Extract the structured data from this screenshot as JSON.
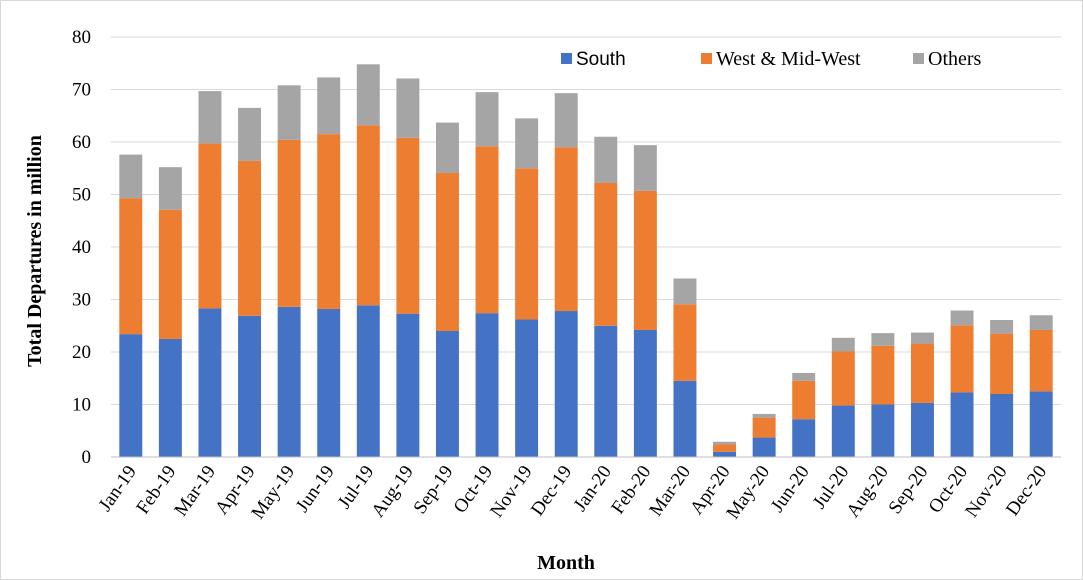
{
  "chart_data": {
    "type": "bar",
    "stacked": true,
    "title": "",
    "xlabel": "Month",
    "ylabel": "Total Departures in million",
    "ylim": [
      0,
      80
    ],
    "yticks": [
      0,
      10,
      20,
      30,
      40,
      50,
      60,
      70,
      80
    ],
    "grid": true,
    "legend_position": "top-right",
    "categories": [
      "Jan-19",
      "Feb-19",
      "Mar-19",
      "Apr-19",
      "May-19",
      "Jun-19",
      "Jul-19",
      "Aug-19",
      "Sep-19",
      "Oct-19",
      "Nov-19",
      "Dec-19",
      "Jan-20",
      "Feb-20",
      "Mar-20",
      "Apr-20",
      "May-20",
      "Jun-20",
      "Jul-20",
      "Aug-20",
      "Sep-20",
      "Oct-20",
      "Nov-20",
      "Dec-20"
    ],
    "series": [
      {
        "name": "South",
        "color": "#4472c4",
        "values": [
          23.4,
          22.5,
          28.3,
          26.9,
          28.6,
          28.2,
          28.9,
          27.3,
          24.0,
          27.4,
          26.2,
          27.8,
          25.0,
          24.2,
          14.5,
          1.0,
          3.7,
          7.2,
          9.8,
          10.0,
          10.3,
          12.3,
          12.0,
          12.5
        ]
      },
      {
        "name": "West & Mid-West",
        "color": "#ed7d31",
        "values": [
          25.9,
          24.6,
          31.4,
          29.5,
          31.8,
          33.3,
          34.3,
          33.5,
          30.1,
          31.8,
          28.8,
          31.2,
          27.2,
          26.5,
          14.6,
          1.4,
          3.8,
          7.3,
          10.3,
          11.2,
          11.3,
          12.8,
          11.5,
          11.7
        ]
      },
      {
        "name": "Others",
        "color": "#a5a5a5",
        "values": [
          8.3,
          8.1,
          10.0,
          10.1,
          10.4,
          10.8,
          11.6,
          11.3,
          9.6,
          10.3,
          9.5,
          10.3,
          8.8,
          8.7,
          4.9,
          0.5,
          0.7,
          1.5,
          2.6,
          2.4,
          2.1,
          2.8,
          2.6,
          2.8
        ]
      }
    ]
  }
}
